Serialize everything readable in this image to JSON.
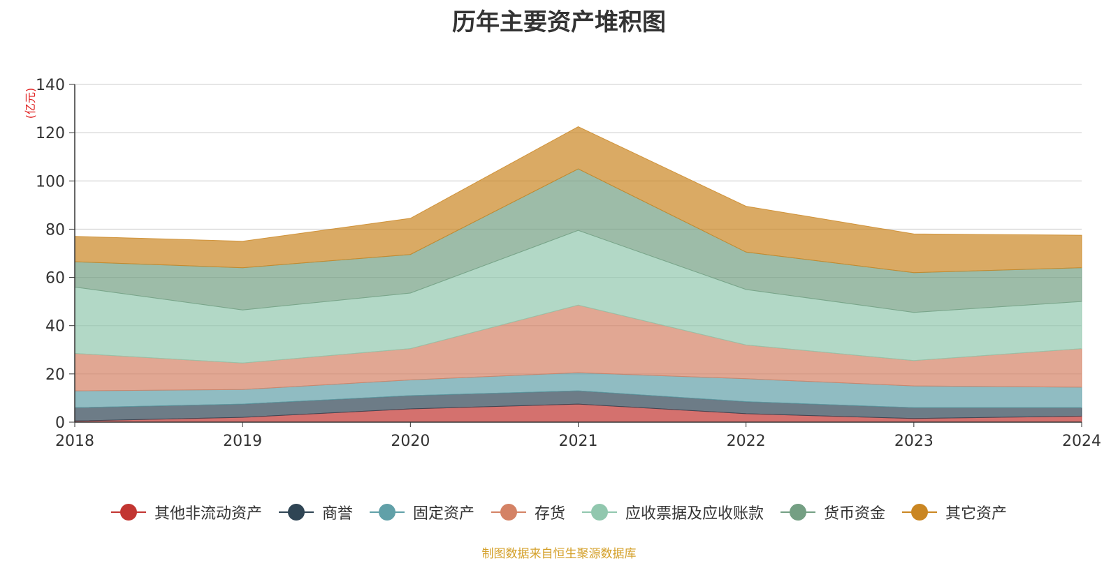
{
  "chart_data": {
    "type": "area",
    "stacked": true,
    "title": "历年主要资产堆积图",
    "unit_label": "(亿元)",
    "categories": [
      "2018",
      "2019",
      "2020",
      "2021",
      "2022",
      "2023",
      "2024"
    ],
    "ylim": [
      0,
      140
    ],
    "yticks": [
      "0",
      "20",
      "40",
      "60",
      "80",
      "100",
      "120",
      "140"
    ],
    "grid": true,
    "legend_position": "bottom",
    "series": [
      {
        "name": "其他非流动资产",
        "color": "#c23531",
        "values": [
          0.5,
          2,
          5.5,
          7.5,
          3.5,
          1.5,
          2.5
        ]
      },
      {
        "name": "商誉",
        "color": "#2f4554",
        "values": [
          5.5,
          5.5,
          5.5,
          5.5,
          5,
          4.5,
          3.5
        ]
      },
      {
        "name": "固定资产",
        "color": "#61a0a8",
        "values": [
          7,
          6,
          6.5,
          7.5,
          9.5,
          9,
          8.5
        ]
      },
      {
        "name": "存货",
        "color": "#d48265",
        "values": [
          15.5,
          11,
          13,
          28,
          14,
          10.5,
          16
        ]
      },
      {
        "name": "应收票据及应收账款",
        "color": "#91c7ae",
        "values": [
          27.5,
          22,
          23,
          31,
          23,
          20,
          19.5
        ]
      },
      {
        "name": "货币资金",
        "color": "#749f83",
        "values": [
          10.5,
          17.5,
          16,
          25.5,
          15.5,
          16.5,
          14
        ]
      },
      {
        "name": "其它资产",
        "color": "#ca8622",
        "values": [
          10.5,
          11,
          15,
          17.5,
          19,
          16,
          13.5
        ]
      }
    ]
  },
  "footer": {
    "source": "制图数据来自恒生聚源数据库"
  }
}
